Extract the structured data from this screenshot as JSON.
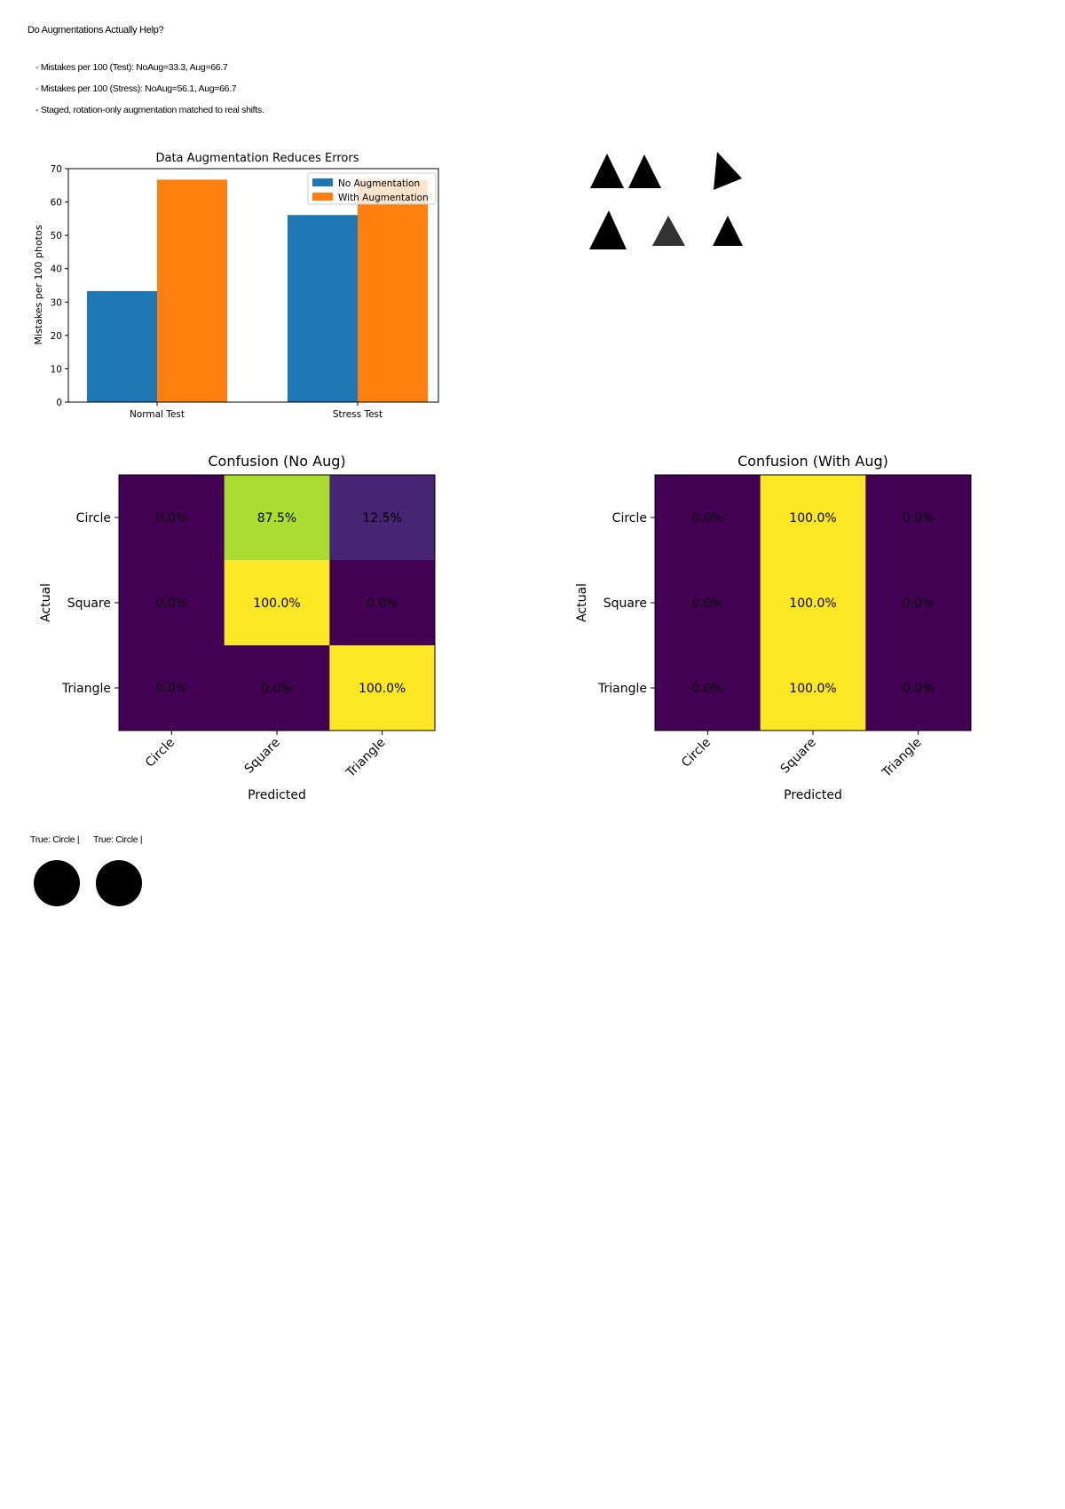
{
  "title": "Do Augmentations Actually Help?",
  "bullets": [
    "- Mistakes per 100 (Test): NoAug=33.3, Aug=66.7",
    "- Mistakes per 100 (Stress): NoAug=56.1, Aug=66.7",
    "- Staged, rotation-only augmentation matched to real shifts."
  ],
  "colors": {
    "no_aug": "#1f77b4",
    "with_aug": "#ff7f0e",
    "viridis_low": "#440154",
    "viridis_high": "#fde725"
  },
  "chart_data": [
    {
      "type": "bar",
      "title": "Data Augmentation Reduces Errors",
      "categories": [
        "Normal Test",
        "Stress Test"
      ],
      "series": [
        {
          "name": "No Augmentation",
          "values": [
            33.3,
            56.1
          ]
        },
        {
          "name": "With Augmentation",
          "values": [
            66.7,
            66.7
          ]
        }
      ],
      "xlabel": "",
      "ylabel": "Mistakes per 100 photos",
      "ylim": [
        0,
        70
      ],
      "yticks": [
        "0",
        "10",
        "20",
        "30",
        "40",
        "50",
        "60",
        "70"
      ],
      "legend": "top-right",
      "grid": false
    },
    {
      "type": "heatmap",
      "title": "Confusion (No Aug)",
      "row_labels": [
        "Circle",
        "Square",
        "Triangle"
      ],
      "col_labels": [
        "Circle",
        "Square",
        "Triangle"
      ],
      "xlabel": "Predicted",
      "ylabel": "Actual",
      "values": [
        [
          0.0,
          87.5,
          12.5
        ],
        [
          0.0,
          100.0,
          0.0
        ],
        [
          0.0,
          0.0,
          100.0
        ]
      ],
      "cell_labels": [
        [
          "0.0%",
          "87.5%",
          "12.5%"
        ],
        [
          "0.0%",
          "100.0%",
          "0.0%"
        ],
        [
          "0.0%",
          "0.0%",
          "100.0%"
        ]
      ],
      "colormap": "viridis"
    },
    {
      "type": "heatmap",
      "title": "Confusion (With Aug)",
      "row_labels": [
        "Circle",
        "Square",
        "Triangle"
      ],
      "col_labels": [
        "Circle",
        "Square",
        "Triangle"
      ],
      "xlabel": "Predicted",
      "ylabel": "Actual",
      "values": [
        [
          0.0,
          100.0,
          0.0
        ],
        [
          0.0,
          100.0,
          0.0
        ],
        [
          0.0,
          100.0,
          0.0
        ]
      ],
      "cell_labels": [
        [
          "0.0%",
          "100.0%",
          "0.0%"
        ],
        [
          "0.0%",
          "100.0%",
          "0.0%"
        ],
        [
          "0.0%",
          "100.0%",
          "0.0%"
        ]
      ],
      "colormap": "viridis"
    }
  ],
  "samples": {
    "labels": [
      "True: Circle |",
      "True: Circle |"
    ]
  }
}
